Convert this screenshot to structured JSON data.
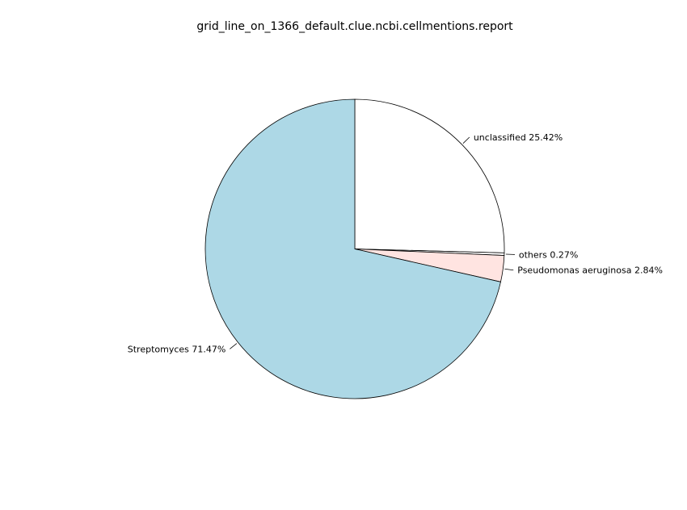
{
  "chart_data": {
    "type": "pie",
    "title": "grid_line_on_1366_default.clue.ncbi.cellmentions.report",
    "slices": [
      {
        "label": "unclassified",
        "percent": "25.42%",
        "value": 25.42,
        "color": "#ffffff"
      },
      {
        "label": "others",
        "percent": "0.27%",
        "value": 0.27,
        "color": "#ffffff"
      },
      {
        "label": "Pseudomonas aeruginosa",
        "percent": "2.84%",
        "value": 2.84,
        "color": "#ffe4e1"
      },
      {
        "label": "Streptomyces",
        "percent": "71.47%",
        "value": 71.47,
        "color": "#add8e6"
      }
    ],
    "start_angle_deg": 90,
    "direction": "clockwise",
    "edge_color": "#000000",
    "legend": "none"
  }
}
